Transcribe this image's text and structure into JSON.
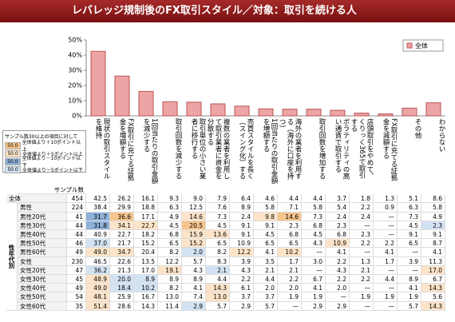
{
  "title": "レバレッジ規制後のFX取引スタイル／対象：取引を続ける人",
  "chart_data": {
    "type": "bar",
    "categories": [
      "現状の取引スタイルを維持",
      "FX取引に充てる証拠金を増額する",
      "1回当たりの取引金額を減少する",
      "取引回数を減少する",
      "取引単位の小さい業者に移行する",
      "複数の業者を利用して取引業者に資金を分散する",
      "売買スタイルを長く（スイング化）する",
      "1回当たりの取引金額を増額する",
      "海外の業者を利用する（海外に口座を持つ）",
      "取引回数を増加する",
      "ボラティリティの高い通貨で取引する",
      "店頭取引をやめて、くりっく365で取引する",
      "FX取引に充てる証拠金を減額する",
      "その他",
      "わからない"
    ],
    "series": [
      {
        "name": "全体",
        "color": "#eca4a4",
        "values": [
          42.5,
          26.2,
          16.1,
          9.3,
          9.0,
          7.9,
          6.4,
          4.6,
          4.4,
          4.4,
          3.7,
          1.8,
          1.3,
          5.1,
          8.6
        ]
      }
    ],
    "ylim": [
      0,
      50
    ],
    "yticks": [
      {
        "value": 0,
        "label": "0%"
      },
      {
        "value": 10,
        "label": "10%"
      },
      {
        "value": 20,
        "label": "20%"
      },
      {
        "value": 30,
        "label": "30%"
      },
      {
        "value": 40,
        "label": "40%"
      },
      {
        "value": 50,
        "label": "50%"
      }
    ],
    "legend": "top-right"
  },
  "highlight_legend": {
    "title": "サンプル数30以上の項目に対して",
    "items": [
      {
        "sample": "50.0",
        "label": "全体値より＋10ポイント以上",
        "color": "#f7c48c",
        "min_diff": 10
      },
      {
        "sample": "50.0",
        "label": "全体値より＋5ポイント以上",
        "color": "#fde4c8",
        "min_diff": 5
      },
      {
        "sample": "50.0",
        "label": "全体値より－10ポイント以下",
        "color": "#8fb1da",
        "min_diff": -10
      },
      {
        "sample": "50.0",
        "label": "全体値より－5ポイント以下",
        "color": "#d3e3f3",
        "min_diff": -5
      }
    ]
  },
  "table": {
    "sample_header": "サンプル数",
    "group_label": "性年代別",
    "rows": [
      {
        "label": "全体",
        "n": "454",
        "cells": [
          "42.5",
          "26.2",
          "16.1",
          "9.3",
          "9.0",
          "7.9",
          "6.4",
          "4.6",
          "4.4",
          "4.4",
          "3.7",
          "1.8",
          "1.3",
          "5.1",
          "8.6"
        ]
      },
      {
        "label": "男性",
        "n": "224",
        "cells": [
          "38.4",
          "29.9",
          "18.8",
          "6.3",
          "12.5",
          "7.6",
          "8.9",
          "5.8",
          "7.1",
          "5.8",
          "5.4",
          "2.2",
          "0.9",
          "6.3",
          "5.8"
        ]
      },
      {
        "label": "男性20代",
        "n": "41",
        "cells": [
          "31.7",
          "36.6",
          "17.1",
          "4.9",
          "14.6",
          "7.3",
          "2.4",
          "9.8",
          "14.6",
          "7.3",
          "2.4",
          "2.4",
          "—",
          "7.3",
          "4.9"
        ]
      },
      {
        "label": "男性30代",
        "n": "44",
        "cells": [
          "31.8",
          "34.1",
          "22.7",
          "4.5",
          "20.5",
          "4.5",
          "9.1",
          "9.1",
          "2.3",
          "6.8",
          "2.3",
          "—",
          "—",
          "4.5",
          "2.3"
        ]
      },
      {
        "label": "男性40代",
        "n": "44",
        "cells": [
          "40.9",
          "22.7",
          "18.2",
          "6.8",
          "15.9",
          "13.6",
          "9.1",
          "4.5",
          "6.8",
          "4.5",
          "6.8",
          "2.3",
          "—",
          "9.1",
          "9.1"
        ]
      },
      {
        "label": "男性50代",
        "n": "46",
        "cells": [
          "37.0",
          "21.7",
          "15.2",
          "6.5",
          "15.2",
          "6.5",
          "10.9",
          "6.5",
          "6.5",
          "4.3",
          "10.9",
          "2.2",
          "2.2",
          "6.5",
          "8.7"
        ]
      },
      {
        "label": "男性60代",
        "n": "49",
        "cells": [
          "49.0",
          "34.7",
          "20.4",
          "8.2",
          "2.0",
          "8.2",
          "12.2",
          "4.1",
          "10.2",
          "—",
          "4.1",
          "—",
          "4.1",
          "—",
          "4.1"
        ]
      },
      {
        "label": "女性",
        "n": "230",
        "cells": [
          "46.5",
          "22.6",
          "13.5",
          "12.2",
          "5.7",
          "8.3",
          "3.9",
          "3.5",
          "1.7",
          "3.0",
          "2.2",
          "1.3",
          "1.7",
          "3.9",
          "11.3"
        ]
      },
      {
        "label": "女性20代",
        "n": "47",
        "cells": [
          "36.2",
          "21.3",
          "17.0",
          "19.1",
          "4.3",
          "2.1",
          "4.3",
          "2.1",
          "2.1",
          "—",
          "4.3",
          "2.1",
          "—",
          "—",
          "17.0"
        ]
      },
      {
        "label": "女性30代",
        "n": "45",
        "cells": [
          "48.9",
          "20.0",
          "8.9",
          "8.9",
          "8.9",
          "4.4",
          "2.2",
          "4.4",
          "2.2",
          "6.7",
          "2.2",
          "2.2",
          "4.4",
          "8.9",
          "6.7"
        ]
      },
      {
        "label": "女性40代",
        "n": "49",
        "cells": [
          "49.0",
          "18.4",
          "10.2",
          "8.2",
          "4.1",
          "14.3",
          "6.1",
          "2.0",
          "2.0",
          "4.1",
          "2.0",
          "—",
          "—",
          "4.1",
          "14.3"
        ]
      },
      {
        "label": "女性50代",
        "n": "54",
        "cells": [
          "48.1",
          "25.9",
          "16.7",
          "13.0",
          "7.4",
          "13.0",
          "3.7",
          "3.7",
          "1.9",
          "1.9",
          "—",
          "1.9",
          "1.9",
          "1.9",
          "5.6"
        ]
      },
      {
        "label": "女性60代",
        "n": "35",
        "cells": [
          "51.4",
          "28.6",
          "14.3",
          "11.4",
          "2.9",
          "5.7",
          "2.9",
          "5.7",
          "—",
          "2.9",
          "2.9",
          "—",
          "—",
          "5.7",
          "14.3"
        ]
      }
    ]
  }
}
